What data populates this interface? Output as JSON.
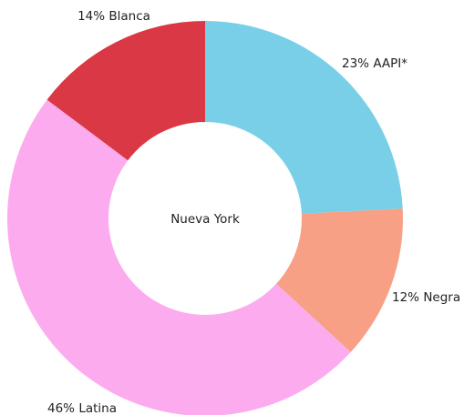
{
  "chart_data": {
    "type": "donut",
    "title": "Nueva York",
    "categories": [
      "AAPI*",
      "Negra",
      "Latina",
      "Blanca"
    ],
    "values": [
      23,
      12,
      46,
      14
    ],
    "value_labels": [
      "23%",
      "12%",
      "46%",
      "14%"
    ],
    "colors": [
      "#7acfe8",
      "#f7a086",
      "#fdabef",
      "#d93844"
    ]
  }
}
